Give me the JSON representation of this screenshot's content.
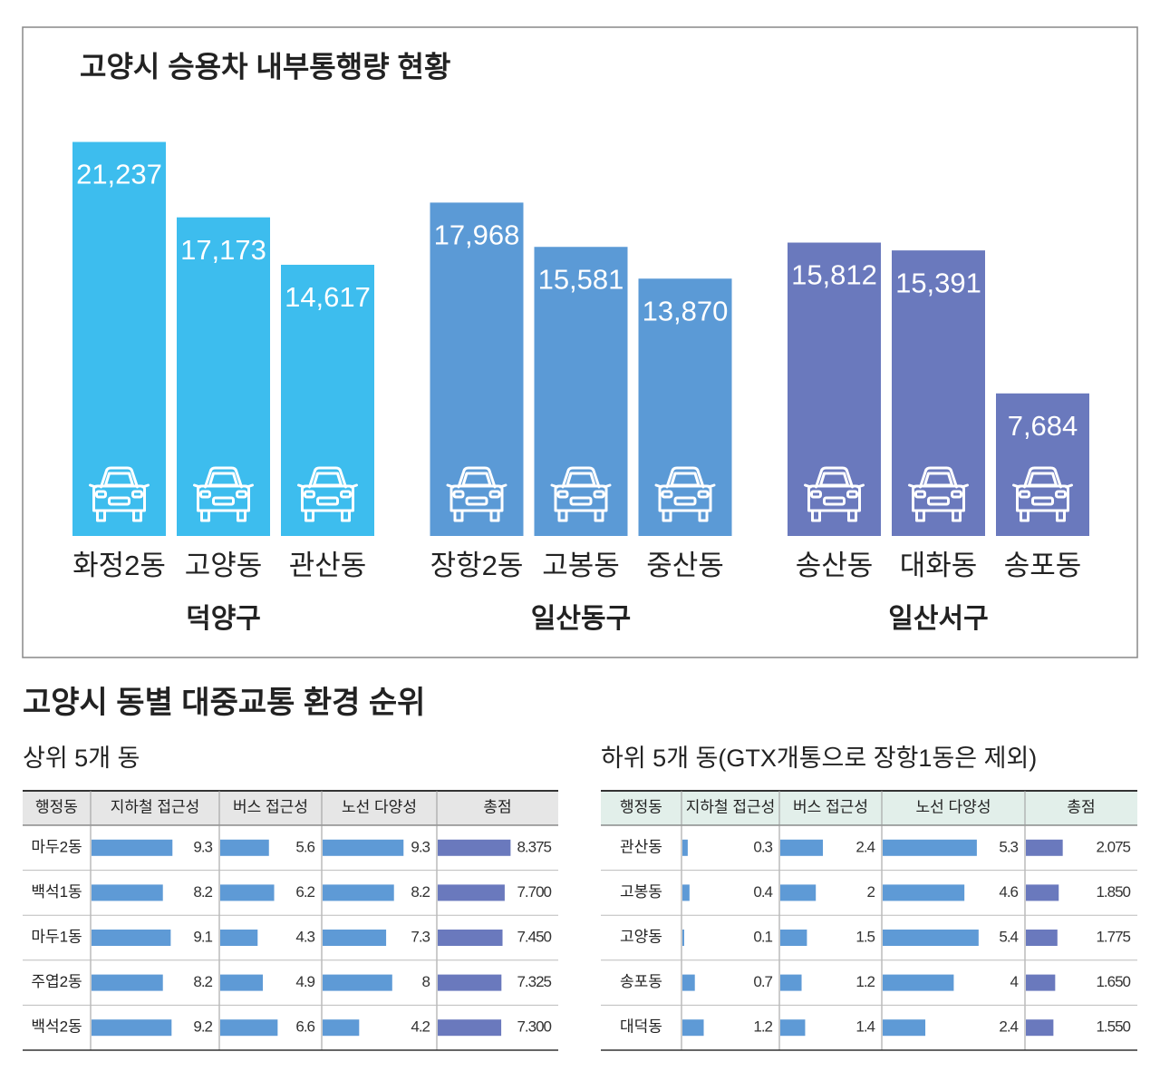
{
  "chart_data": {
    "type": "bar",
    "title": "고양시 승용차 내부통행량 현황",
    "ylim": [
      0,
      24000
    ],
    "series": [
      {
        "name": "덕양구",
        "color": "#3dbdee",
        "categories": [
          "화정2동",
          "고양동",
          "관산동"
        ],
        "values": [
          21237,
          17173,
          14617
        ],
        "value_labels": [
          "21,237",
          "17,173",
          "14,617"
        ]
      },
      {
        "name": "일산동구",
        "color": "#5b9ad6",
        "categories": [
          "장항2동",
          "고봉동",
          "중산동"
        ],
        "values": [
          17968,
          15581,
          13870
        ],
        "value_labels": [
          "17,968",
          "15,581",
          "13,870"
        ]
      },
      {
        "name": "일산서구",
        "color": "#6a79bd",
        "categories": [
          "송산동",
          "대화동",
          "송포동"
        ],
        "values": [
          15812,
          15391,
          7684
        ],
        "value_labels": [
          "15,812",
          "15,391",
          "7,684"
        ]
      }
    ]
  },
  "section_title": "고양시 동별 대중교통 환경 순위",
  "tables": [
    {
      "title": "상위 5개 동",
      "header": [
        "행정동",
        "지하철 접근성",
        "버스 접근성",
        "노선 다양성",
        "총점"
      ],
      "rows": [
        [
          "마두2동",
          "9.3",
          "5.6",
          "9.3",
          "8.375"
        ],
        [
          "백석1동",
          "8.2",
          "6.2",
          "8.2",
          "7.700"
        ],
        [
          "마두1동",
          "9.1",
          "4.3",
          "7.3",
          "7.450"
        ],
        [
          "주엽2동",
          "8.2",
          "4.9",
          "8",
          "7.325"
        ],
        [
          "백석2동",
          "9.2",
          "6.6",
          "4.2",
          "7.300"
        ]
      ]
    },
    {
      "title": "하위 5개 동(GTX개통으로 장항1동은 제외)",
      "header": [
        "행정동",
        "지하철 접근성",
        "버스 접근성",
        "노선 다양성",
        "총점"
      ],
      "rows": [
        [
          "관산동",
          "0.3",
          "2.4",
          "5.3",
          "2.075"
        ],
        [
          "고봉동",
          "0.4",
          "2",
          "4.6",
          "1.850"
        ],
        [
          "고양동",
          "0.1",
          "1.5",
          "5.4",
          "1.775"
        ],
        [
          "송포동",
          "0.7",
          "1.2",
          "4",
          "1.650"
        ],
        [
          "대덕동",
          "1.2",
          "1.4",
          "2.4",
          "1.550"
        ]
      ]
    }
  ]
}
